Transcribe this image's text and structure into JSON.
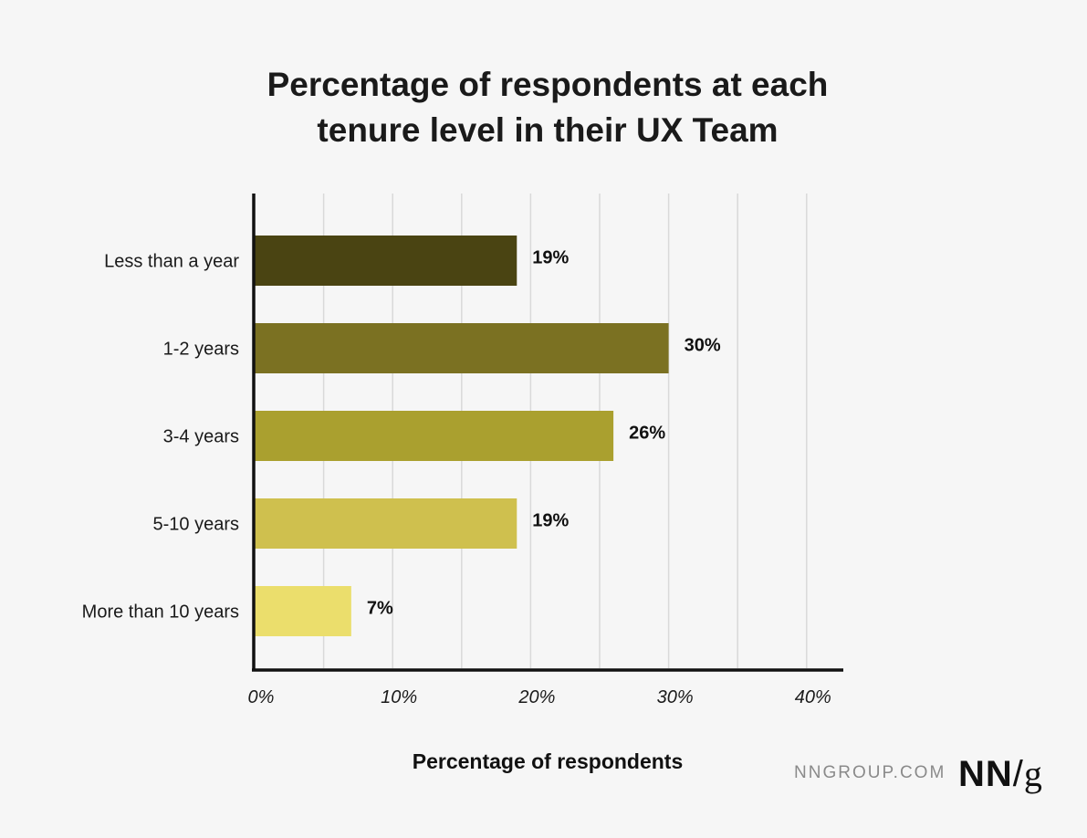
{
  "title_lines": [
    "Percentage of respondents at each",
    "tenure level in their UX Team"
  ],
  "footer": {
    "site": "NNGROUP.COM",
    "logo": "NN/g"
  },
  "chart_data": {
    "type": "bar",
    "orientation": "horizontal",
    "title": "Percentage of respondents at each tenure level in their UX Team",
    "xlabel": "Percentage of respondents",
    "ylabel": "",
    "categories": [
      "Less than a year",
      "1-2 years",
      "3-4 years",
      "5-10 years",
      "More than 10 years"
    ],
    "values": [
      19,
      30,
      26,
      19,
      7
    ],
    "data_labels": [
      "19%",
      "30%",
      "26%",
      "19%",
      "7%"
    ],
    "bar_colors": [
      "#4a4412",
      "#7b7122",
      "#aaa02f",
      "#cfc04e",
      "#ebde6c"
    ],
    "xlim": [
      0,
      42
    ],
    "xticks": [
      0,
      10,
      20,
      30,
      40
    ],
    "xtick_labels": [
      "0%",
      "10%",
      "20%",
      "30%",
      "40%"
    ],
    "grid": "vertical",
    "grid_color": "#d9d9d9",
    "axis_color": "#111111"
  }
}
